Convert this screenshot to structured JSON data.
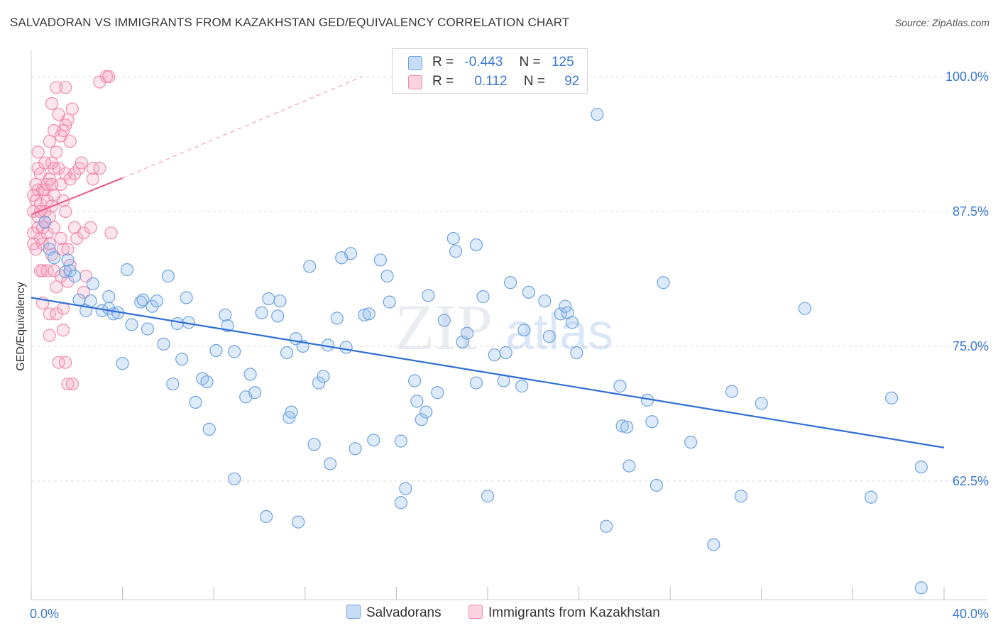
{
  "header": {
    "title": "SALVADORAN VS IMMIGRANTS FROM KAZAKHSTAN GED/EQUIVALENCY CORRELATION CHART",
    "source": "Source: ZipAtlas.com"
  },
  "legend": {
    "rows": [
      {
        "r_label": "R =",
        "r_value": "-0.443",
        "n_label": "N =",
        "n_value": "125",
        "color": "#a8c8f0"
      },
      {
        "r_label": "R =",
        "r_value": "0.112",
        "n_label": "N =",
        "n_value": "92",
        "color": "#f5b0c8"
      }
    ],
    "bottom": [
      {
        "label": "Salvadorans",
        "color": "#a8c8f0"
      },
      {
        "label": "Immigrants from Kazakhstan",
        "color": "#f5b0c8"
      }
    ]
  },
  "watermark": {
    "zip": "ZIP",
    "atlas": "atlas"
  },
  "chart_data": {
    "type": "scatter",
    "title": "SALVADORAN VS IMMIGRANTS FROM KAZAKHSTAN GED/EQUIVALENCY CORRELATION CHART",
    "xlabel": "",
    "ylabel": "GED/Equivalency",
    "xlim": [
      0,
      40
    ],
    "ylim": [
      51.5,
      102.5
    ],
    "x_tick_labels": [
      "0.0%",
      "40.0%"
    ],
    "y_ticks": [
      62.5,
      75.0,
      87.5,
      100.0
    ],
    "y_tick_labels": [
      "62.5%",
      "75.0%",
      "87.5%",
      "100.0%"
    ],
    "grid": true,
    "series": [
      {
        "name": "Salvadorans",
        "color": "#6fa3e0",
        "trend": {
          "x": [
            0.0,
            40.0
          ],
          "y": [
            79.5,
            65.6
          ]
        },
        "points": [
          [
            0.6,
            86.5
          ],
          [
            0.8,
            84
          ],
          [
            1.0,
            83.2
          ],
          [
            1.6,
            83.0
          ],
          [
            1.5,
            81.9
          ],
          [
            1.7,
            82.0
          ],
          [
            1.9,
            81.5
          ],
          [
            2.7,
            80.8
          ],
          [
            2.1,
            79.3
          ],
          [
            2.4,
            78.3
          ],
          [
            2.6,
            79.2
          ],
          [
            3.1,
            78.3
          ],
          [
            3.4,
            78.5
          ],
          [
            3.4,
            79.6
          ],
          [
            3.6,
            78.0
          ],
          [
            3.8,
            78.1
          ],
          [
            4.0,
            73.4
          ],
          [
            4.2,
            82.1
          ],
          [
            4.4,
            77.0
          ],
          [
            4.8,
            79.1
          ],
          [
            4.9,
            79.3
          ],
          [
            5.1,
            76.6
          ],
          [
            5.3,
            78.7
          ],
          [
            5.5,
            79.2
          ],
          [
            5.8,
            75.2
          ],
          [
            6.0,
            81.5
          ],
          [
            6.2,
            71.5
          ],
          [
            6.4,
            77.1
          ],
          [
            6.6,
            73.8
          ],
          [
            6.8,
            79.5
          ],
          [
            6.9,
            77.2
          ],
          [
            7.2,
            69.8
          ],
          [
            7.5,
            72.0
          ],
          [
            7.7,
            71.7
          ],
          [
            7.8,
            67.3
          ],
          [
            8.1,
            74.6
          ],
          [
            8.5,
            77.9
          ],
          [
            8.6,
            76.9
          ],
          [
            8.9,
            74.5
          ],
          [
            8.9,
            62.7
          ],
          [
            9.4,
            70.3
          ],
          [
            9.6,
            72.4
          ],
          [
            9.8,
            70.7
          ],
          [
            10.1,
            78.1
          ],
          [
            10.3,
            59.2
          ],
          [
            10.4,
            79.4
          ],
          [
            10.8,
            77.8
          ],
          [
            10.9,
            79.2
          ],
          [
            11.2,
            74.4
          ],
          [
            11.3,
            68.4
          ],
          [
            11.4,
            68.9
          ],
          [
            11.6,
            75.7
          ],
          [
            11.7,
            58.7
          ],
          [
            11.9,
            75.0
          ],
          [
            12.2,
            82.4
          ],
          [
            12.4,
            65.9
          ],
          [
            12.6,
            71.6
          ],
          [
            12.8,
            72.2
          ],
          [
            13.0,
            75.1
          ],
          [
            13.1,
            64.1
          ],
          [
            13.4,
            77.6
          ],
          [
            13.6,
            83.2
          ],
          [
            13.8,
            74.9
          ],
          [
            14.0,
            83.6
          ],
          [
            14.2,
            65.5
          ],
          [
            14.6,
            77.9
          ],
          [
            14.8,
            78.0
          ],
          [
            15.0,
            66.3
          ],
          [
            15.3,
            83.0
          ],
          [
            15.6,
            81.5
          ],
          [
            15.7,
            79.1
          ],
          [
            16.2,
            60.5
          ],
          [
            16.2,
            66.2
          ],
          [
            16.4,
            61.8
          ],
          [
            16.8,
            71.8
          ],
          [
            16.9,
            69.9
          ],
          [
            17.1,
            68.2
          ],
          [
            17.3,
            68.9
          ],
          [
            17.4,
            79.7
          ],
          [
            17.8,
            70.7
          ],
          [
            18.1,
            77.4
          ],
          [
            18.5,
            85.0
          ],
          [
            18.6,
            83.8
          ],
          [
            18.9,
            75.4
          ],
          [
            19.1,
            76.2
          ],
          [
            19.5,
            84.4
          ],
          [
            19.5,
            71.6
          ],
          [
            19.8,
            79.6
          ],
          [
            20.0,
            61.1
          ],
          [
            20.3,
            74.2
          ],
          [
            20.7,
            71.8
          ],
          [
            20.8,
            74.4
          ],
          [
            21.0,
            80.9
          ],
          [
            21.5,
            71.3
          ],
          [
            21.6,
            76.5
          ],
          [
            21.8,
            80.0
          ],
          [
            22.5,
            79.2
          ],
          [
            22.7,
            75.9
          ],
          [
            23.2,
            78.0
          ],
          [
            23.5,
            78.1
          ],
          [
            23.4,
            78.7
          ],
          [
            23.7,
            77.2
          ],
          [
            23.9,
            74.4
          ],
          [
            24.8,
            96.5
          ],
          [
            25.2,
            58.3
          ],
          [
            25.8,
            71.3
          ],
          [
            25.9,
            67.6
          ],
          [
            26.1,
            67.5
          ],
          [
            26.2,
            63.9
          ],
          [
            27.0,
            70.0
          ],
          [
            27.2,
            68.0
          ],
          [
            27.4,
            62.1
          ],
          [
            27.7,
            80.9
          ],
          [
            28.9,
            66.1
          ],
          [
            29.9,
            56.6
          ],
          [
            30.7,
            70.8
          ],
          [
            31.1,
            61.1
          ],
          [
            32.0,
            69.7
          ],
          [
            33.9,
            78.5
          ],
          [
            36.8,
            61.0
          ],
          [
            37.7,
            70.2
          ],
          [
            39.0,
            63.8
          ],
          [
            39.0,
            52.6
          ]
        ]
      },
      {
        "name": "Immigrants from Kazakhstan",
        "color": "#f08cae",
        "trend": {
          "x": [
            0.0,
            4.0
          ],
          "y": [
            87.2,
            90.6
          ],
          "dashed_to": [
            14.5,
            100.0
          ]
        },
        "points": [
          [
            0.1,
            89.0
          ],
          [
            0.1,
            87.5
          ],
          [
            0.1,
            85.5
          ],
          [
            0.1,
            84.5
          ],
          [
            0.2,
            90.0
          ],
          [
            0.2,
            88.5
          ],
          [
            0.3,
            93.0
          ],
          [
            0.3,
            91.5
          ],
          [
            0.3,
            89.5
          ],
          [
            0.3,
            87.0
          ],
          [
            0.3,
            86.0
          ],
          [
            0.4,
            91.0
          ],
          [
            0.4,
            88.2
          ],
          [
            0.4,
            87.5
          ],
          [
            0.4,
            85.0
          ],
          [
            0.5,
            89.5
          ],
          [
            0.5,
            86.0
          ],
          [
            0.5,
            84.5
          ],
          [
            0.5,
            82.0
          ],
          [
            0.5,
            79.0
          ],
          [
            0.6,
            92.0
          ],
          [
            0.6,
            89.5
          ],
          [
            0.6,
            87.5
          ],
          [
            0.6,
            86.5
          ],
          [
            0.7,
            90.0
          ],
          [
            0.7,
            88.5
          ],
          [
            0.7,
            85.5
          ],
          [
            0.7,
            82.0
          ],
          [
            0.8,
            94.0
          ],
          [
            0.8,
            90.5
          ],
          [
            0.8,
            87.0
          ],
          [
            0.8,
            84.5
          ],
          [
            0.8,
            78.0
          ],
          [
            0.8,
            76.0
          ],
          [
            0.9,
            97.5
          ],
          [
            0.9,
            92.0
          ],
          [
            0.9,
            88.0
          ],
          [
            0.9,
            83.5
          ],
          [
            1.0,
            95.0
          ],
          [
            1.0,
            91.5
          ],
          [
            1.0,
            89.0
          ],
          [
            1.0,
            86.0
          ],
          [
            1.0,
            82.0
          ],
          [
            1.1,
            99.0
          ],
          [
            1.1,
            93.0
          ],
          [
            1.1,
            80.5
          ],
          [
            1.1,
            78.0
          ],
          [
            1.2,
            96.5
          ],
          [
            1.2,
            91.5
          ],
          [
            1.2,
            73.5
          ],
          [
            1.3,
            94.5
          ],
          [
            1.3,
            90.0
          ],
          [
            1.3,
            85.0
          ],
          [
            1.3,
            81.5
          ],
          [
            1.4,
            95.0
          ],
          [
            1.4,
            88.5
          ],
          [
            1.4,
            84.0
          ],
          [
            1.4,
            78.5
          ],
          [
            1.4,
            76.5
          ],
          [
            1.5,
            99.0
          ],
          [
            1.5,
            95.5
          ],
          [
            1.5,
            91.0
          ],
          [
            1.5,
            87.5
          ],
          [
            1.5,
            73.5
          ],
          [
            1.6,
            96.0
          ],
          [
            1.6,
            84.0
          ],
          [
            1.6,
            81.0
          ],
          [
            1.6,
            71.5
          ],
          [
            1.7,
            94.0
          ],
          [
            1.7,
            90.5
          ],
          [
            1.7,
            82.5
          ],
          [
            1.8,
            97.0
          ],
          [
            1.8,
            71.5
          ],
          [
            1.9,
            91.0
          ],
          [
            1.9,
            86.0
          ],
          [
            2.0,
            85.0
          ],
          [
            2.1,
            91.5
          ],
          [
            2.2,
            92.0
          ],
          [
            2.3,
            85.5
          ],
          [
            2.3,
            80.0
          ],
          [
            2.4,
            81.5
          ],
          [
            2.6,
            86.0
          ],
          [
            2.7,
            91.5
          ],
          [
            2.7,
            90.5
          ],
          [
            3.0,
            91.5
          ],
          [
            3.0,
            99.5
          ],
          [
            3.3,
            100.0
          ],
          [
            3.4,
            100.0
          ],
          [
            3.5,
            85.5
          ],
          [
            0.2,
            84.0
          ],
          [
            0.4,
            82.0
          ],
          [
            0.9,
            90.0
          ]
        ]
      }
    ]
  }
}
